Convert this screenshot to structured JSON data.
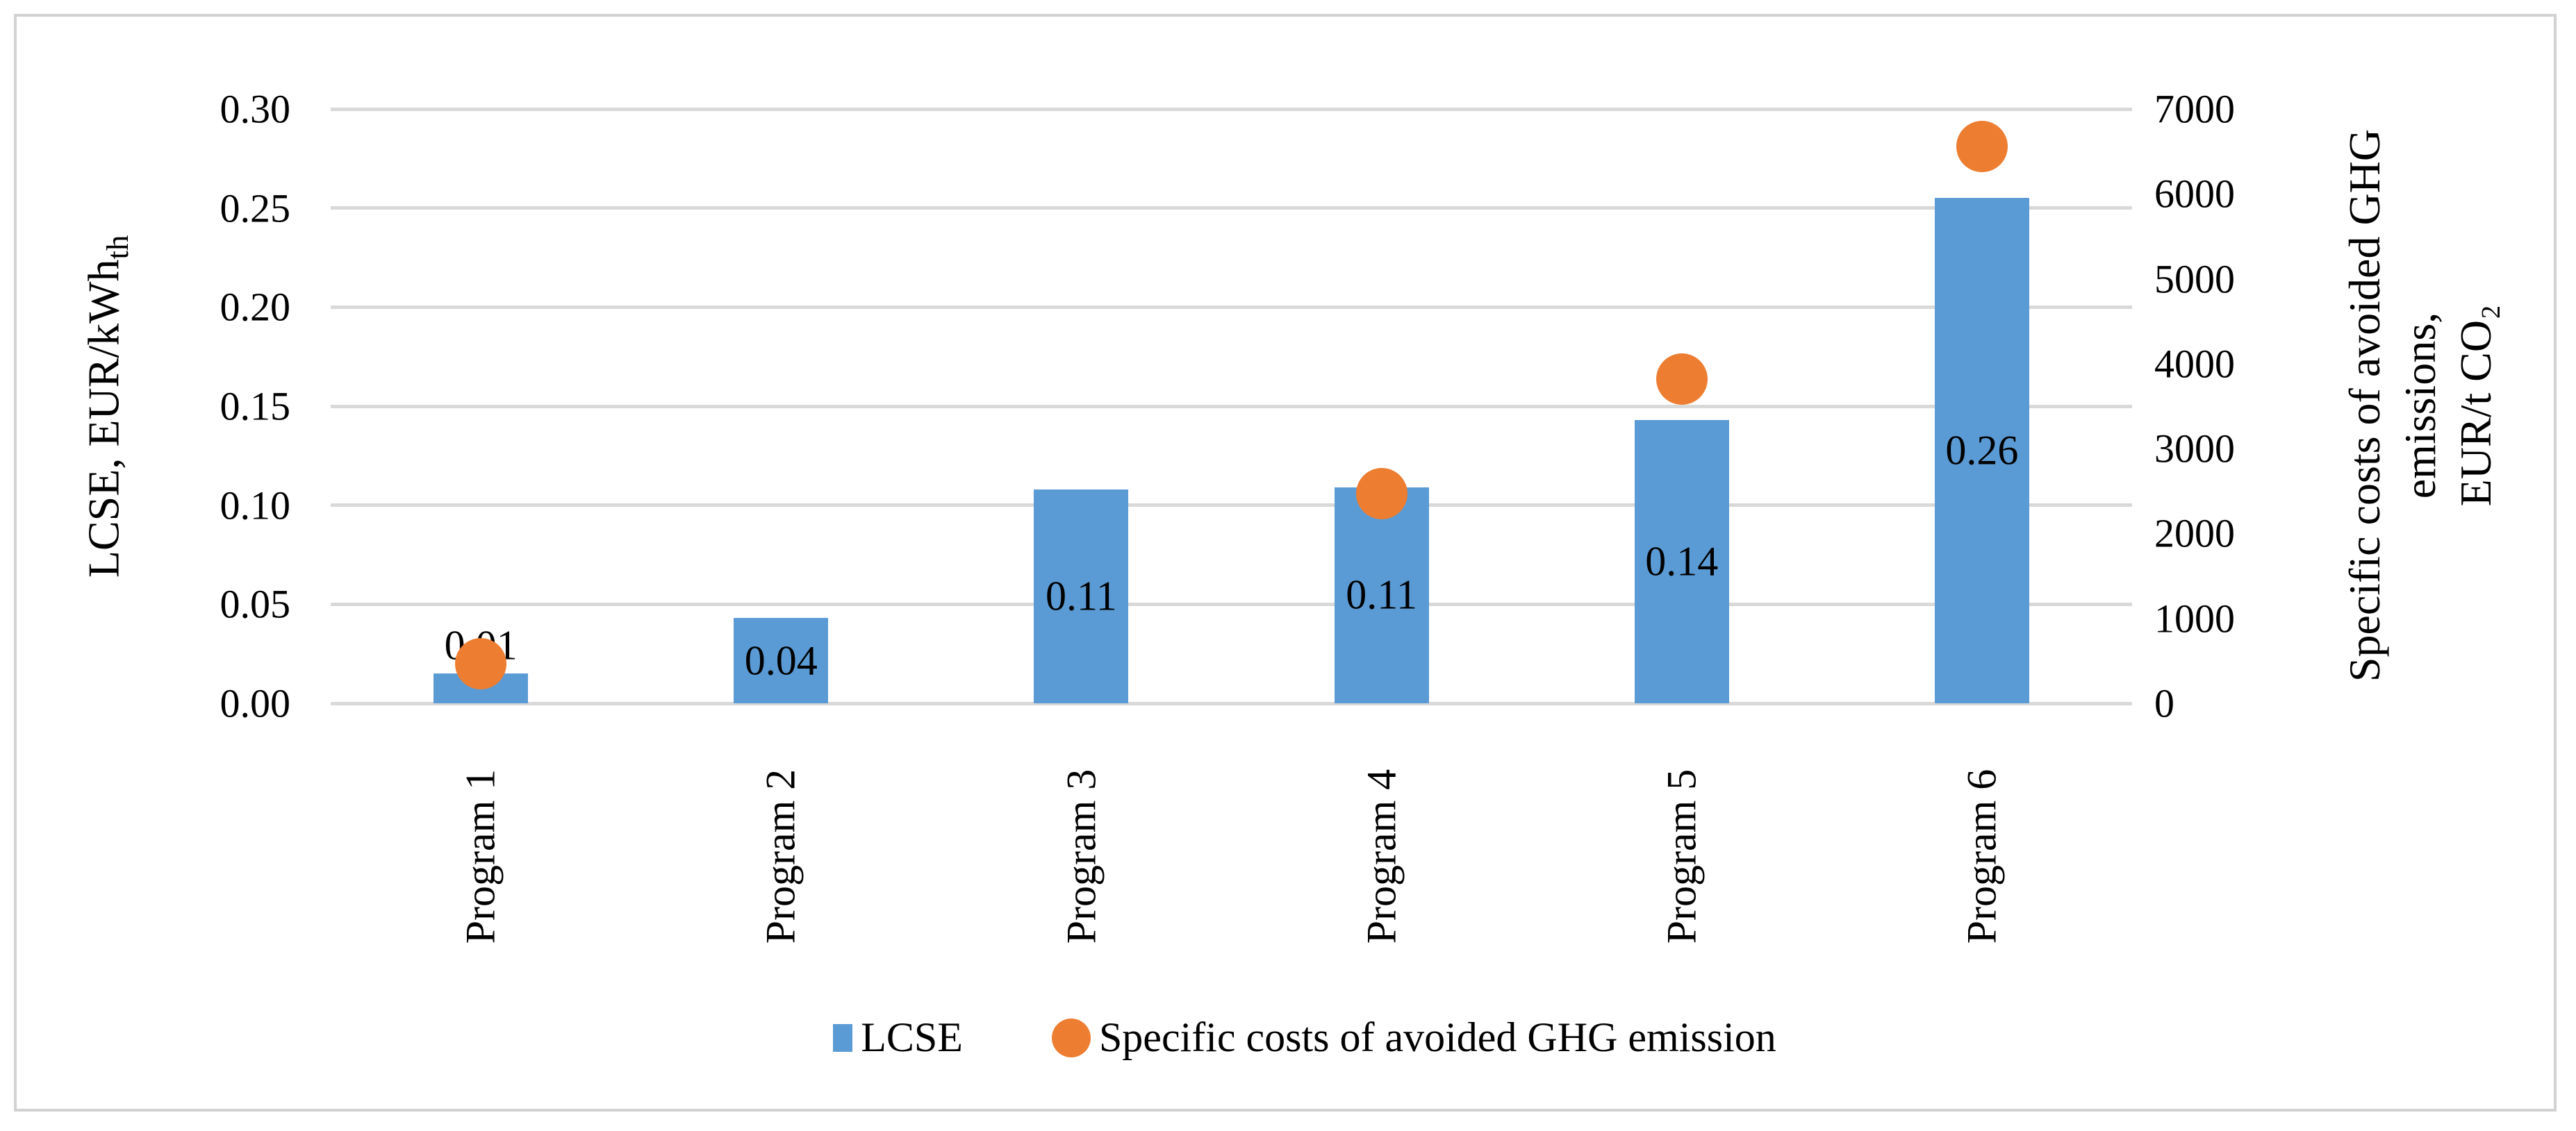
{
  "chart_data": {
    "type": "combo_bar_scatter",
    "categories": [
      "Program 1",
      "Program 2",
      "Program 3",
      "Program 4",
      "Program 5",
      "Program 6"
    ],
    "series": [
      {
        "name": "LCSE",
        "type": "bar",
        "axis": "left",
        "color": "#5B9BD5",
        "values": [
          0.015,
          0.043,
          0.108,
          0.109,
          0.143,
          0.255
        ],
        "data_labels": [
          "0.01",
          "0.04",
          "0.11",
          "0.11",
          "0.14",
          "0.26"
        ]
      },
      {
        "name": "Specific costs of avoided GHG emission",
        "type": "scatter",
        "axis": "right",
        "color": "#ED7D31",
        "values": [
          470,
          null,
          null,
          2470,
          3820,
          6560
        ]
      }
    ],
    "axes": {
      "left": {
        "title_main": "LCSE, EUR/kWh",
        "title_sub": "th",
        "min": 0,
        "max": 0.3,
        "step": 0.05,
        "tick_labels": [
          "0.00",
          "0.05",
          "0.10",
          "0.15",
          "0.20",
          "0.25",
          "0.30"
        ]
      },
      "right": {
        "title_lines": [
          "Specific costs of avoided GHG",
          "emissions,",
          "EUR/t CO₂"
        ],
        "min": 0,
        "max": 7000,
        "step": 1000,
        "tick_labels": [
          "0",
          "1000",
          "2000",
          "3000",
          "4000",
          "5000",
          "6000",
          "7000"
        ]
      }
    },
    "legend": {
      "position": "bottom"
    },
    "grid": {
      "show": true,
      "color": "#D9D9D9"
    },
    "colors": {
      "bar": "#5B9BD5",
      "dot": "#ED7D31",
      "text": "#000000",
      "frame": "#D2D2D2",
      "background": "#FFFFFF"
    }
  }
}
